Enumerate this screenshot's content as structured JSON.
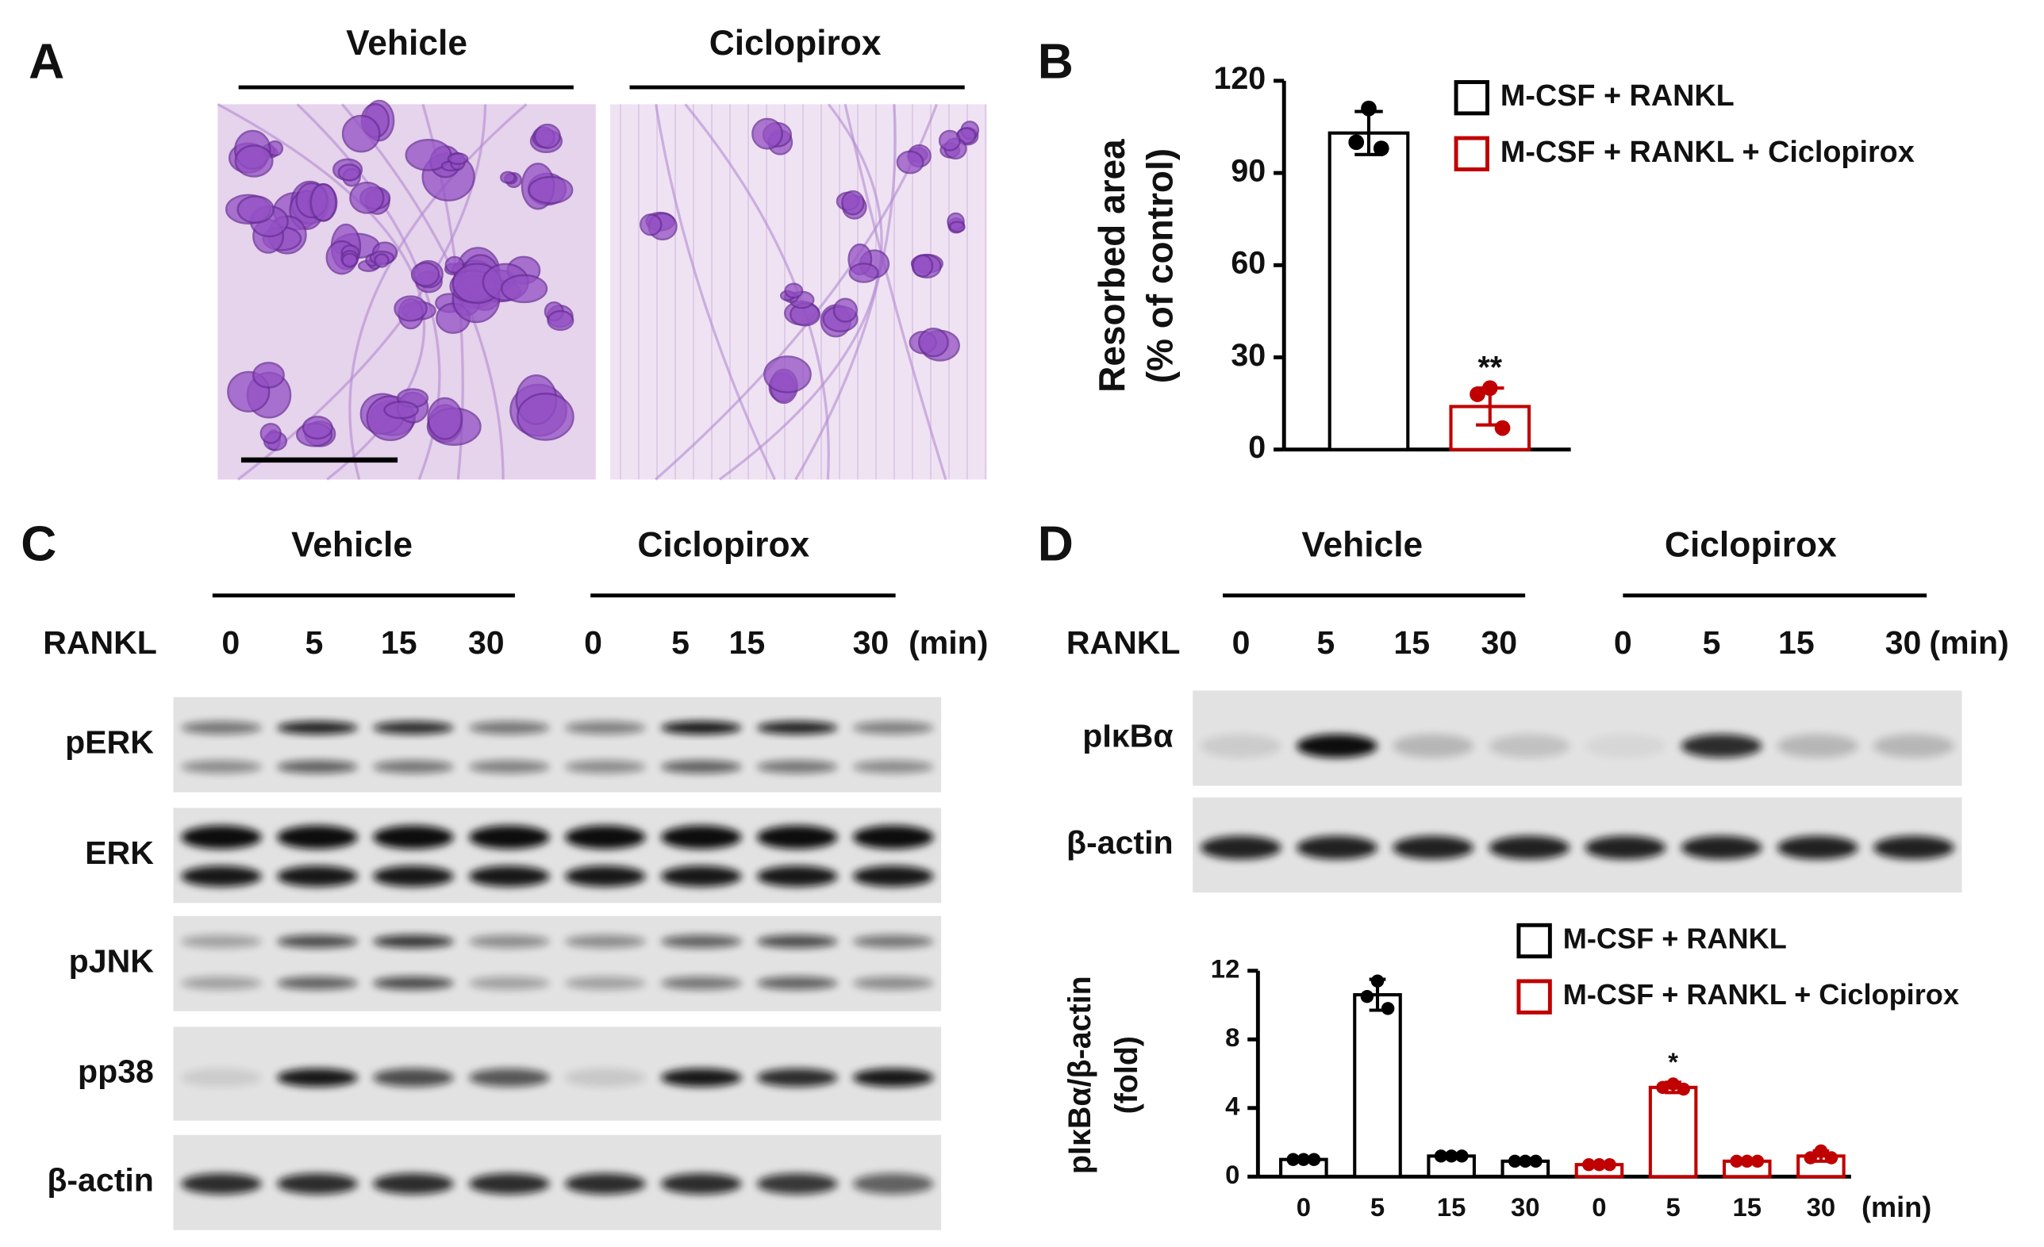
{
  "panel_labels": [
    "A",
    "B",
    "C",
    "D"
  ],
  "panel_a": {
    "groups": [
      "Vehicle",
      "Ciclopirox"
    ]
  },
  "panel_c": {
    "groups": [
      "Vehicle",
      "Ciclopirox"
    ],
    "row_label": "RANKL",
    "times": [
      0,
      5,
      15,
      30,
      0,
      5,
      15,
      30
    ],
    "unit": "(min)",
    "blots": [
      "pERK",
      "ERK",
      "pJNK",
      "pp38",
      "β-actin"
    ]
  },
  "panel_d": {
    "groups": [
      "Vehicle",
      "Ciclopirox"
    ],
    "row_label": "RANKL",
    "times": [
      0,
      5,
      15,
      30,
      0,
      5,
      15,
      30
    ],
    "unit": "(min)",
    "blots": [
      "pIκBα",
      "β-actin"
    ]
  },
  "chart_data": [
    {
      "type": "bar",
      "ylabel": [
        "Resorbed area",
        "(% of control)"
      ],
      "ylim": [
        0,
        120
      ],
      "yticks": [
        0,
        30,
        60,
        90,
        120
      ],
      "series": [
        {
          "name": "M-CSF  + RANKL",
          "color": "#000000",
          "values": [
            103
          ],
          "errors": [
            7
          ],
          "points": [
            [
              111,
              100,
              98
            ]
          ]
        },
        {
          "name": "M-CSF  + RANKL  + Ciclopirox",
          "color": "#c00000",
          "values": [
            14
          ],
          "errors": [
            6
          ],
          "points": [
            [
              20,
              18,
              7
            ]
          ],
          "annotations": [
            "**"
          ]
        }
      ]
    },
    {
      "type": "bar",
      "ylabel": [
        "pIκBα/β-actin",
        "(fold)"
      ],
      "xlabel": "(min)",
      "categories": [
        0,
        5,
        15,
        30,
        0,
        5,
        15,
        30
      ],
      "ylim": [
        0,
        12
      ],
      "yticks": [
        0,
        4,
        8,
        12
      ],
      "series": [
        {
          "name": "M-CSF + RANKL",
          "color": "#000000",
          "values": [
            1.0,
            10.6,
            1.2,
            0.9,
            null,
            null,
            null,
            null
          ],
          "errors": [
            0.1,
            0.9,
            0.1,
            0.1,
            null,
            null,
            null,
            null
          ],
          "points": [
            [
              1.0,
              1.0,
              1.0
            ],
            [
              11.4,
              10.5,
              9.8
            ],
            [
              1.2,
              1.2,
              1.2
            ],
            [
              0.9,
              0.9,
              0.9
            ],
            null,
            null,
            null,
            null
          ]
        },
        {
          "name": "M-CSF + RANKL + Ciclopirox",
          "color": "#c00000",
          "values": [
            null,
            null,
            null,
            null,
            0.7,
            5.2,
            0.9,
            1.2
          ],
          "errors": [
            null,
            null,
            null,
            null,
            0.1,
            0.3,
            0.1,
            0.3
          ],
          "points": [
            null,
            null,
            null,
            null,
            [
              0.7,
              0.7,
              0.7
            ],
            [
              5.4,
              5.2,
              5.1
            ],
            [
              0.9,
              0.9,
              0.9
            ],
            [
              1.5,
              1.1,
              1.1
            ]
          ],
          "annotations": [
            null,
            null,
            null,
            null,
            null,
            "*",
            null,
            null
          ]
        }
      ]
    }
  ]
}
